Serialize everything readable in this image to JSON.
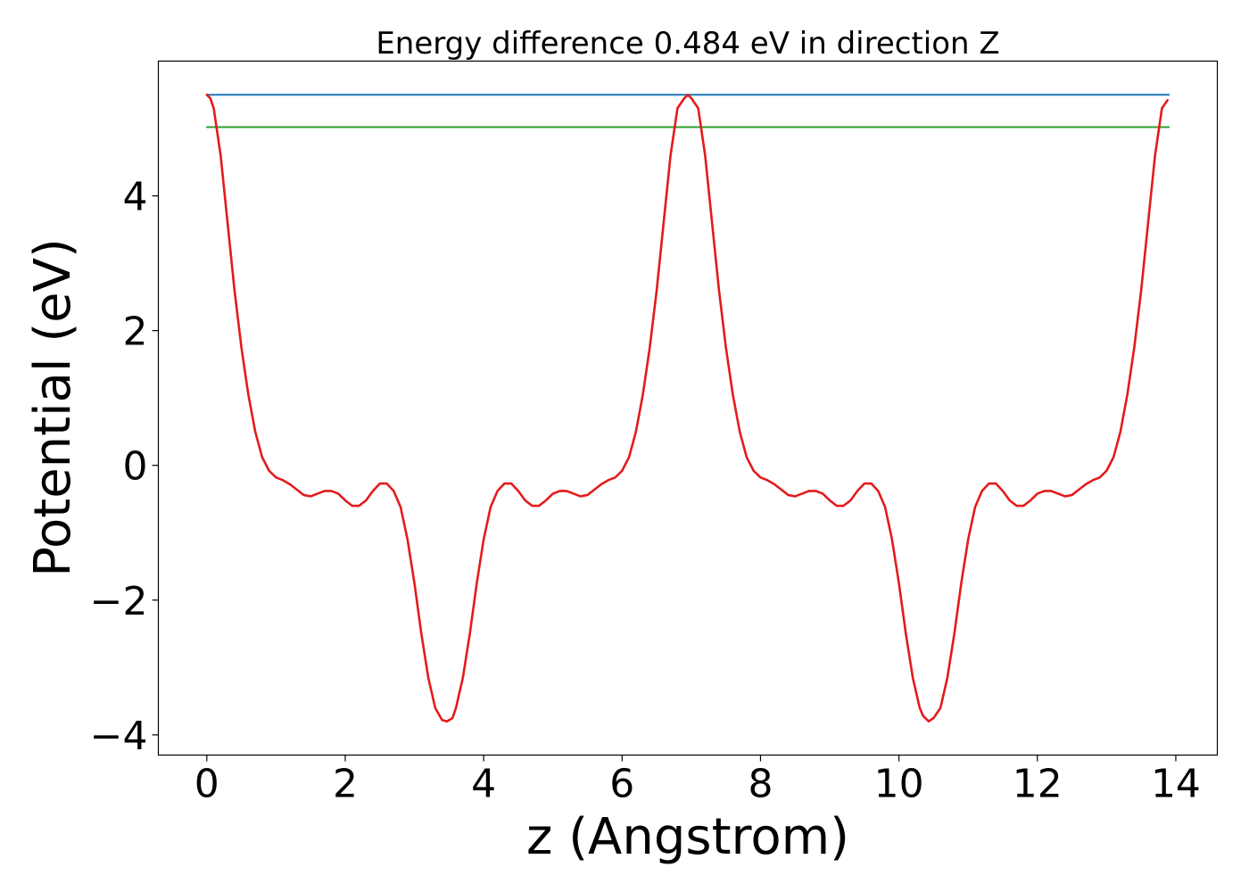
{
  "chart_data": {
    "type": "line",
    "title": "Energy difference 0.484 eV in direction Z",
    "xlabel": "z (Angstrom)",
    "ylabel": "Potential (eV)",
    "xlim": [
      -0.7,
      14.6
    ],
    "ylim": [
      -4.3,
      6.0
    ],
    "xticks": [
      0,
      2,
      4,
      6,
      8,
      10,
      12,
      14
    ],
    "yticks": [
      -4,
      -2,
      0,
      2,
      4
    ],
    "ytick_labels": [
      "−4",
      "−2",
      "0",
      "2",
      "4"
    ],
    "grid": false,
    "legend": "none",
    "series": [
      {
        "color": "#1f77b4",
        "x": [
          0.0,
          13.9
        ],
        "y": [
          5.5,
          5.5
        ]
      },
      {
        "color": "#2ca02c",
        "x": [
          0.0,
          13.9
        ],
        "y": [
          5.02,
          5.02
        ]
      },
      {
        "color": "#e41a1c",
        "x": [
          0.0,
          0.05,
          0.1,
          0.2,
          0.3,
          0.4,
          0.5,
          0.6,
          0.7,
          0.8,
          0.9,
          1.0,
          1.1,
          1.2,
          1.3,
          1.4,
          1.5,
          1.6,
          1.7,
          1.8,
          1.9,
          2.0,
          2.1,
          2.2,
          2.3,
          2.4,
          2.5,
          2.6,
          2.7,
          2.8,
          2.9,
          3.0,
          3.1,
          3.2,
          3.3,
          3.4,
          3.47,
          3.55,
          3.6,
          3.7,
          3.8,
          3.9,
          4.0,
          4.1,
          4.2,
          4.3,
          4.4,
          4.5,
          4.6,
          4.7,
          4.8,
          4.9,
          5.0,
          5.1,
          5.2,
          5.3,
          5.4,
          5.5,
          5.6,
          5.7,
          5.8,
          5.9,
          6.0,
          6.1,
          6.2,
          6.3,
          6.4,
          6.5,
          6.6,
          6.7,
          6.8,
          6.9,
          6.95,
          7.0,
          7.1,
          7.2,
          7.3,
          7.4,
          7.5,
          7.6,
          7.7,
          7.8,
          7.9,
          8.0,
          8.1,
          8.2,
          8.3,
          8.4,
          8.5,
          8.6,
          8.7,
          8.8,
          8.9,
          9.0,
          9.1,
          9.2,
          9.3,
          9.4,
          9.5,
          9.6,
          9.7,
          9.8,
          9.9,
          10.0,
          10.1,
          10.2,
          10.3,
          10.35,
          10.43,
          10.5,
          10.6,
          10.7,
          10.8,
          10.9,
          11.0,
          11.1,
          11.2,
          11.3,
          11.4,
          11.5,
          11.6,
          11.7,
          11.8,
          11.9,
          12.0,
          12.1,
          12.2,
          12.3,
          12.4,
          12.5,
          12.6,
          12.7,
          12.8,
          12.9,
          13.0,
          13.1,
          13.2,
          13.3,
          13.4,
          13.5,
          13.6,
          13.7,
          13.8,
          13.88
        ],
        "y": [
          5.5,
          5.45,
          5.3,
          4.6,
          3.6,
          2.6,
          1.75,
          1.05,
          0.5,
          0.12,
          -0.08,
          -0.18,
          -0.22,
          -0.28,
          -0.36,
          -0.44,
          -0.46,
          -0.42,
          -0.38,
          -0.38,
          -0.42,
          -0.52,
          -0.6,
          -0.6,
          -0.52,
          -0.38,
          -0.27,
          -0.27,
          -0.38,
          -0.62,
          -1.1,
          -1.75,
          -2.5,
          -3.15,
          -3.6,
          -3.78,
          -3.8,
          -3.75,
          -3.6,
          -3.15,
          -2.5,
          -1.75,
          -1.1,
          -0.62,
          -0.38,
          -0.27,
          -0.27,
          -0.38,
          -0.52,
          -0.6,
          -0.6,
          -0.52,
          -0.42,
          -0.38,
          -0.38,
          -0.42,
          -0.46,
          -0.44,
          -0.36,
          -0.28,
          -0.22,
          -0.18,
          -0.08,
          0.12,
          0.5,
          1.05,
          1.75,
          2.6,
          3.6,
          4.6,
          5.3,
          5.45,
          5.5,
          5.45,
          5.3,
          4.6,
          3.6,
          2.6,
          1.75,
          1.05,
          0.5,
          0.12,
          -0.08,
          -0.18,
          -0.22,
          -0.28,
          -0.36,
          -0.44,
          -0.46,
          -0.42,
          -0.38,
          -0.38,
          -0.42,
          -0.52,
          -0.6,
          -0.6,
          -0.52,
          -0.38,
          -0.27,
          -0.27,
          -0.38,
          -0.62,
          -1.1,
          -1.75,
          -2.5,
          -3.15,
          -3.6,
          -3.72,
          -3.8,
          -3.75,
          -3.6,
          -3.15,
          -2.5,
          -1.75,
          -1.1,
          -0.62,
          -0.38,
          -0.27,
          -0.27,
          -0.38,
          -0.52,
          -0.6,
          -0.6,
          -0.52,
          -0.42,
          -0.38,
          -0.38,
          -0.42,
          -0.46,
          -0.44,
          -0.36,
          -0.28,
          -0.22,
          -0.18,
          -0.08,
          0.12,
          0.5,
          1.05,
          1.75,
          2.6,
          3.6,
          4.6,
          5.3,
          5.42
        ]
      }
    ]
  }
}
